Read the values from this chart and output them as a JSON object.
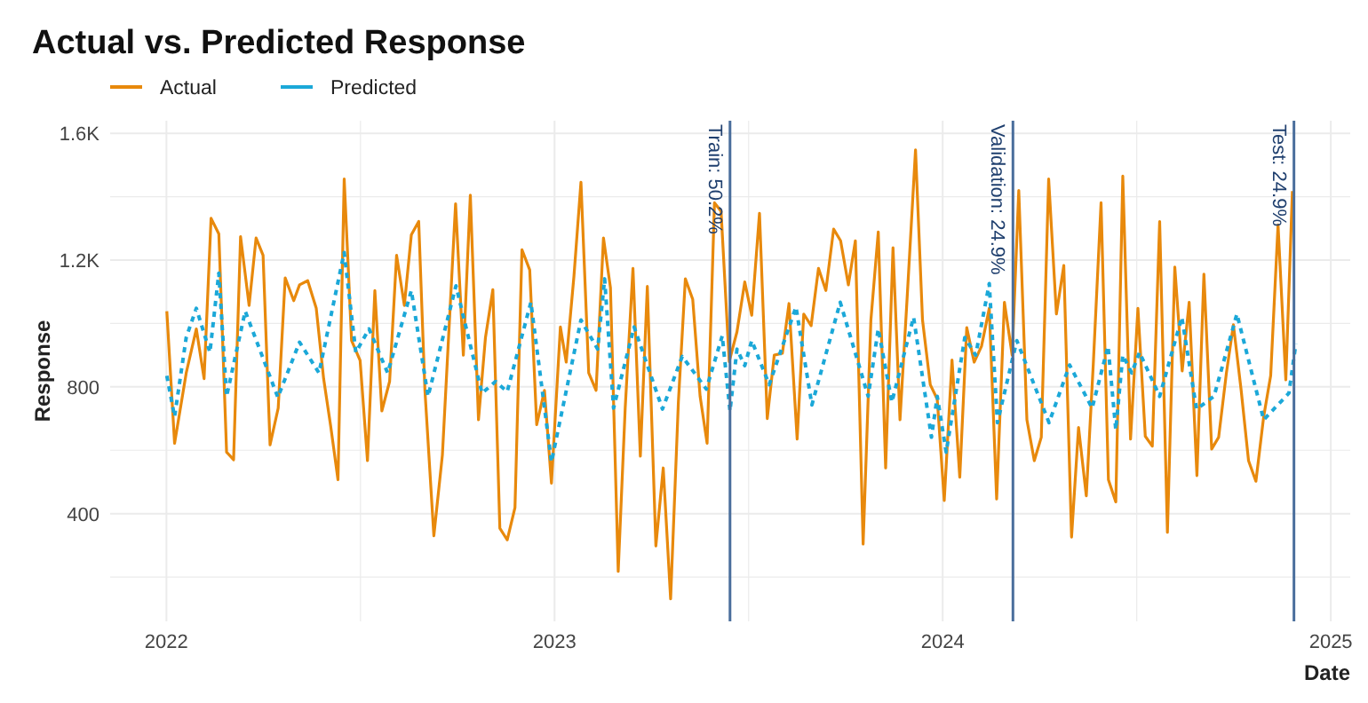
{
  "chart_data": {
    "type": "line",
    "title": "Actual vs. Predicted Response",
    "xlabel": "Date",
    "ylabel": "Response",
    "xlim": [
      2021.855,
      2025.05
    ],
    "xticks": [
      2022,
      {
        "value": 2022.5,
        "label": null
      },
      2023,
      {
        "value": 2023.5,
        "label": null
      },
      2024,
      {
        "value": 2024.5,
        "label": null
      },
      2025
    ],
    "ylim": [
      60,
      1640
    ],
    "yticks": [
      {
        "value": 200,
        "label": null
      },
      400,
      {
        "value": 600,
        "label": null
      },
      800,
      {
        "value": 1000,
        "label": null
      },
      {
        "value": 1200,
        "label": "1.2K"
      },
      {
        "value": 1400,
        "label": null
      },
      {
        "value": 1600,
        "label": "1.6K"
      }
    ],
    "grid": true,
    "legend": "top left",
    "series": [
      {
        "name": "Actual",
        "color": "#e8890c",
        "line_style": "solid",
        "x": [
          2022.001,
          2022.021,
          2022.051,
          2022.077,
          2022.097,
          2022.115,
          2022.135,
          2022.155,
          2022.173,
          2022.191,
          2022.213,
          2022.231,
          2022.249,
          2022.267,
          2022.288,
          2022.306,
          2022.328,
          2022.343,
          2022.364,
          2022.386,
          2022.405,
          2022.423,
          2022.442,
          2022.458,
          2022.477,
          2022.499,
          2022.518,
          2022.537,
          2022.555,
          2022.575,
          2022.593,
          2022.613,
          2022.631,
          2022.65,
          2022.666,
          2022.689,
          2022.711,
          2022.745,
          2022.765,
          2022.783,
          2022.804,
          2022.822,
          2022.841,
          2022.859,
          2022.878,
          2022.898,
          2022.916,
          2022.936,
          2022.954,
          2022.974,
          2022.992,
          2023.015,
          2023.03,
          2023.05,
          2023.068,
          2023.088,
          2023.107,
          2023.126,
          2023.144,
          2023.164,
          2023.182,
          2023.202,
          2023.221,
          2023.239,
          2023.261,
          2023.28,
          2023.299,
          2023.319,
          2023.337,
          2023.356,
          2023.375,
          2023.393,
          2023.412,
          2023.429,
          2023.45,
          2023.47,
          2023.49,
          2023.508,
          2023.528,
          2023.548,
          2023.566,
          2023.587,
          2023.604,
          2023.625,
          2023.642,
          2023.661,
          2023.68,
          2023.699,
          2023.719,
          2023.737,
          2023.757,
          2023.775,
          2023.795,
          2023.815,
          2023.834,
          2023.853,
          2023.872,
          2023.89,
          2023.909,
          2023.93,
          2023.948,
          2023.968,
          2023.986,
          2024.004,
          2024.024,
          2024.044,
          2024.062,
          2024.081,
          2024.1,
          2024.12,
          2024.139,
          2024.159,
          2024.179,
          2024.196,
          2024.217,
          2024.236,
          2024.254,
          2024.273,
          2024.293,
          2024.312,
          2024.332,
          2024.35,
          2024.37,
          2024.388,
          2024.408,
          2024.427,
          2024.446,
          2024.464,
          2024.484,
          2024.503,
          2024.522,
          2024.54,
          2024.559,
          2024.579,
          2024.598,
          2024.617,
          2024.635,
          2024.655,
          2024.673,
          2024.693,
          2024.711,
          2024.731,
          2024.749,
          2024.769,
          2024.788,
          2024.807,
          2024.827,
          2024.845,
          2024.864,
          2024.884,
          2024.901
        ],
        "values": [
          1039,
          622,
          844,
          983,
          826,
          1332,
          1283,
          594,
          570,
          1274,
          1057,
          1270,
          1215,
          617,
          733,
          1144,
          1072,
          1122,
          1135,
          1048,
          826,
          678,
          507,
          1456,
          946,
          883,
          567,
          1104,
          724,
          817,
          1215,
          1057,
          1280,
          1322,
          789,
          330,
          585,
          1378,
          900,
          1405,
          696,
          956,
          1107,
          354,
          317,
          419,
          1233,
          1169,
          681,
          789,
          496,
          989,
          878,
          1150,
          1446,
          844,
          789,
          1270,
          1113,
          218,
          733,
          1174,
          581,
          1117,
          298,
          544,
          131,
          752,
          1141,
          1076,
          770,
          622,
          1381,
          1354,
          880,
          974,
          1131,
          1026,
          1348,
          700,
          900,
          906,
          1063,
          635,
          1030,
          993,
          1174,
          1104,
          1298,
          1261,
          1122,
          1261,
          304,
          1011,
          1289,
          544,
          1239,
          696,
          1094,
          1548,
          1011,
          807,
          761,
          441,
          885,
          515,
          987,
          878,
          928,
          1048,
          446,
          1067,
          900,
          1420,
          696,
          567,
          641,
          1456,
          1030,
          1183,
          326,
          672,
          456,
          872,
          1381,
          507,
          437,
          1465,
          635,
          1048,
          644,
          613,
          1322,
          341,
          1178,
          850,
          1067,
          520,
          1156,
          604,
          641,
          844,
          996,
          789,
          567,
          502,
          706,
          835,
          1311,
          822,
          1418
        ]
      },
      {
        "name": "Predicted",
        "color": "#1ba8d8",
        "line_style": "dashed",
        "x": [
          2022.001,
          2022.021,
          2022.051,
          2022.077,
          2022.112,
          2022.135,
          2022.155,
          2022.203,
          2022.287,
          2022.343,
          2022.393,
          2022.458,
          2022.488,
          2022.522,
          2022.57,
          2022.631,
          2022.674,
          2022.746,
          2022.813,
          2022.848,
          2022.878,
          2022.939,
          2022.992,
          2023.068,
          2023.111,
          2023.129,
          2023.152,
          2023.205,
          2023.278,
          2023.329,
          2023.391,
          2023.432,
          2023.452,
          2023.47,
          2023.49,
          2023.508,
          2023.553,
          2023.622,
          2023.663,
          2023.736,
          2023.808,
          2023.834,
          2023.869,
          2023.925,
          2023.971,
          2023.986,
          2024.009,
          2024.057,
          2024.085,
          2024.12,
          2024.141,
          2024.191,
          2024.274,
          2024.327,
          2024.385,
          2024.426,
          2024.446,
          2024.464,
          2024.487,
          2024.507,
          2024.559,
          2024.616,
          2024.654,
          2024.699,
          2024.758,
          2024.827,
          2024.892,
          2024.91
        ],
        "values": [
          835,
          706,
          956,
          1048,
          909,
          1159,
          770,
          1039,
          767,
          941,
          844,
          1224,
          909,
          983,
          844,
          1104,
          770,
          1119,
          780,
          817,
          785,
          1067,
          563,
          1011,
          919,
          1141,
          733,
          989,
          730,
          896,
          793,
          961,
          724,
          919,
          867,
          946,
          807,
          1052,
          743,
          1067,
          770,
          983,
          752,
          1020,
          641,
          770,
          594,
          956,
          900,
          1126,
          687,
          946,
          687,
          869,
          733,
          928,
          665,
          900,
          844,
          909,
          770,
          1020,
          730,
          770,
          1030,
          696,
          780,
          937
        ]
      }
    ],
    "ref_lines": [
      {
        "axis": "x",
        "value": 2023.452,
        "color": "#4a6e9c"
      },
      {
        "axis": "x",
        "value": 2024.181,
        "color": "#4a6e9c"
      },
      {
        "axis": "x",
        "value": 2024.905,
        "color": "#4a6e9c"
      }
    ],
    "annotations": [
      {
        "text": "Train: 50.2%",
        "x": 2023.452,
        "y": 1640
      },
      {
        "text": "Validation: 24.9%",
        "x": 2024.181,
        "y": 1640
      },
      {
        "text": "Test: 24.9%",
        "x": 2024.905,
        "y": 1640
      }
    ]
  }
}
